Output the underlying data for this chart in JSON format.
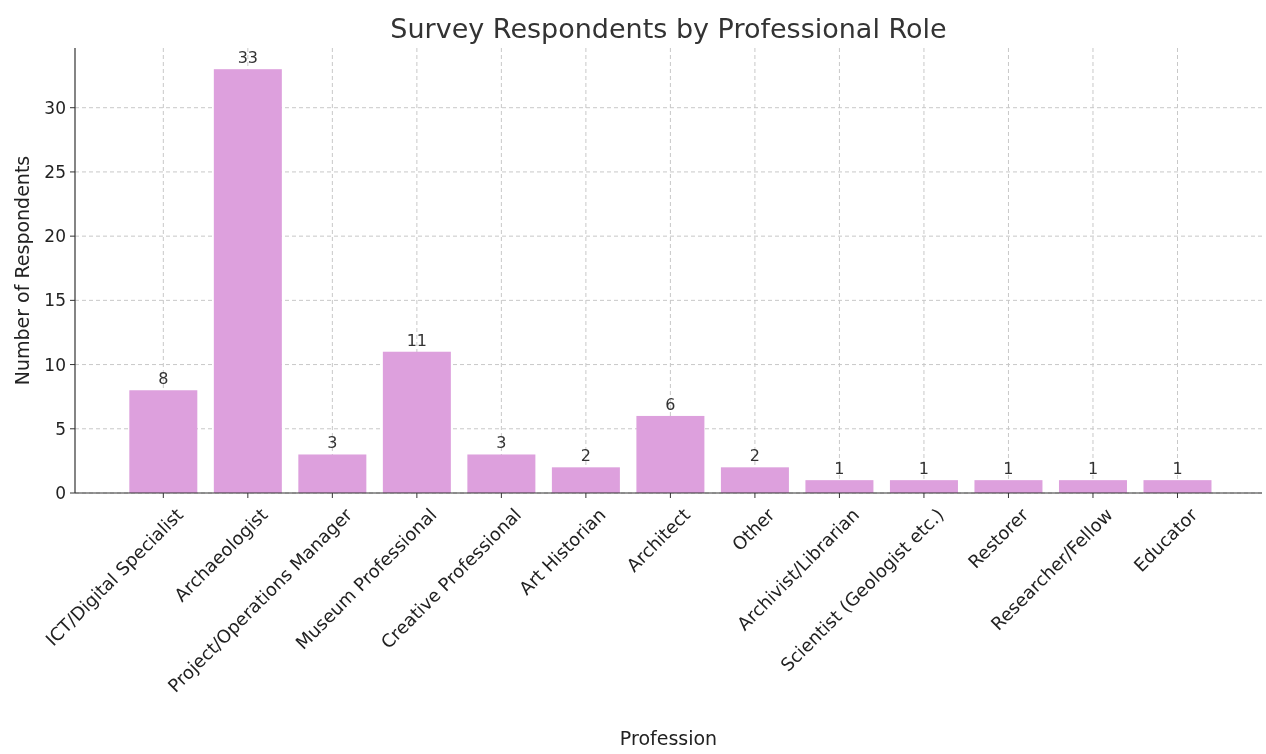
{
  "chart_data": {
    "type": "bar",
    "title": "Survey Respondents by Professional Role",
    "xlabel": "Profession",
    "ylabel": "Number of Respondents",
    "categories": [
      "ICT/Digital Specialist",
      "Archaeologist",
      "Project/Operations Manager",
      "Museum Professional",
      "Creative Professional",
      "Art Historian",
      "Architect",
      "Other",
      "Archivist/Librarian",
      "Scientist (Geologist etc.)",
      "Restorer",
      "Researcher/Fellow",
      "Educator"
    ],
    "values": [
      8,
      33,
      3,
      11,
      3,
      2,
      6,
      2,
      1,
      1,
      1,
      1,
      1
    ],
    "color": "#dda0dd",
    "ylim": [
      0,
      34.65
    ],
    "yticks": [
      0,
      5,
      10,
      15,
      20,
      25,
      30
    ],
    "grid": true,
    "data_labels": true
  }
}
